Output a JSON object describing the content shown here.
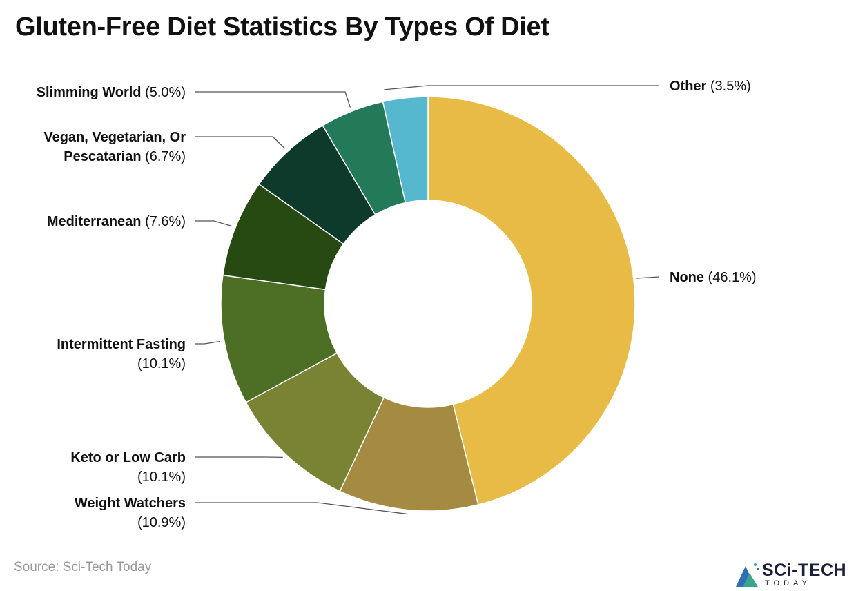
{
  "title": "Gluten-Free Diet Statistics By Types Of Diet",
  "source": "Source: Sci-Tech Today",
  "logo": {
    "name": "SCi-TECH",
    "sub": "TODAY"
  },
  "chart_data": {
    "type": "pie",
    "title": "Gluten-Free Diet Statistics By Types Of Diet",
    "donut": true,
    "slices": [
      {
        "name": "None",
        "value": 46.1,
        "value_label": "(46.1%)",
        "color": "#e7bb45"
      },
      {
        "name": "Weight Watchers",
        "value": 10.9,
        "value_label": "(10.9%)",
        "color": "#a58a42"
      },
      {
        "name": "Keto or Low Carb",
        "value": 10.1,
        "value_label": "(10.1%)",
        "color": "#7a8233"
      },
      {
        "name": "Intermittent Fasting",
        "value": 10.1,
        "value_label": "(10.1%)",
        "color": "#4c6e25"
      },
      {
        "name": "Mediterranean",
        "value": 7.6,
        "value_label": "(7.6%)",
        "color": "#274a13"
      },
      {
        "name": "Vegan, Vegetarian, Or Pescatarian",
        "name_lines": [
          "Vegan, Vegetarian, Or",
          "Pescatarian"
        ],
        "value": 6.7,
        "value_label": "(6.7%)",
        "color": "#0e3a2c"
      },
      {
        "name": "Slimming World",
        "value": 5.0,
        "value_label": "(5.0%)",
        "color": "#237a59"
      },
      {
        "name": "Other",
        "value": 3.5,
        "value_label": "(3.5%)",
        "color": "#55b8cf"
      }
    ]
  }
}
